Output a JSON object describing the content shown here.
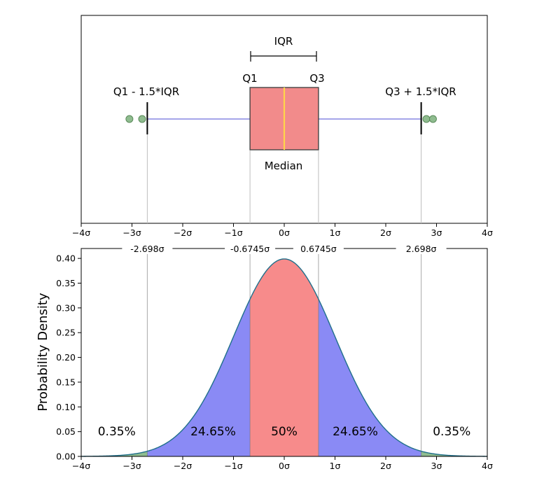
{
  "chart_data": [
    {
      "type": "boxplot",
      "xlim": [
        -4,
        4
      ],
      "xticks": [
        "−4σ",
        "−3σ",
        "−2σ",
        "−1σ",
        "0σ",
        "1σ",
        "2σ",
        "3σ",
        "4σ"
      ],
      "box": {
        "q1": -0.6745,
        "median": 0,
        "q3": 0.6745,
        "whisker_low": -2.698,
        "whisker_high": 2.698
      },
      "outliers": [
        -3.05,
        -2.8,
        2.8,
        2.93
      ],
      "annotations": {
        "iqr": "IQR",
        "q1": "Q1",
        "q3": "Q3",
        "lower_fence": "Q1 - 1.5*IQR",
        "upper_fence": "Q3 + 1.5*IQR",
        "median": "Median"
      },
      "colors": {
        "box": "#f28b8b",
        "median": "#ffd54a",
        "whisker": "#6f6fdc",
        "outlier": "#8fbc8f"
      }
    },
    {
      "type": "area",
      "xlim": [
        -4,
        4
      ],
      "ylim": [
        0,
        0.42
      ],
      "ylabel": "Probability Density",
      "xticks": [
        "−4σ",
        "−3σ",
        "−2σ",
        "−1σ",
        "0σ",
        "1σ",
        "2σ",
        "3σ",
        "4σ"
      ],
      "yticks": [
        "0.00",
        "0.05",
        "0.10",
        "0.15",
        "0.20",
        "0.25",
        "0.30",
        "0.35",
        "0.40"
      ],
      "boundaries": [
        {
          "x": -2.698,
          "label": "-2.698σ"
        },
        {
          "x": -0.6745,
          "label": "-0.6745σ"
        },
        {
          "x": 0.6745,
          "label": "0.6745σ"
        },
        {
          "x": 2.698,
          "label": "2.698σ"
        }
      ],
      "regions": [
        {
          "label": "0.35%",
          "from": -4,
          "to": -2.698,
          "color": "#8fbc8f"
        },
        {
          "label": "24.65%",
          "from": -2.698,
          "to": -0.6745,
          "color": "#8a8af5"
        },
        {
          "label": "50%",
          "from": -0.6745,
          "to": 0.6745,
          "color": "#f78b8b"
        },
        {
          "label": "24.65%",
          "from": 0.6745,
          "to": 2.698,
          "color": "#8a8af5"
        },
        {
          "label": "0.35%",
          "from": 2.698,
          "to": 4,
          "color": "#8fbc8f"
        }
      ],
      "curve_color": "#1f6f8b"
    }
  ]
}
